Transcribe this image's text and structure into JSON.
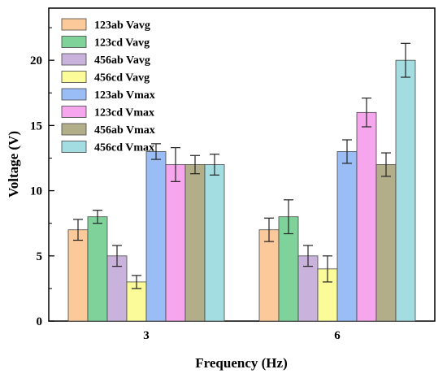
{
  "chart_data": {
    "type": "bar",
    "xlabel": "Frequency (Hz)",
    "ylabel": "Voltage (V)",
    "categories": [
      "3",
      "6"
    ],
    "ylim": [
      0,
      24
    ],
    "yticks": [
      0,
      5,
      10,
      15,
      20
    ],
    "grid": false,
    "legend_position": "top-left",
    "error_bars": true,
    "series": [
      {
        "name": "123ab Vavg",
        "color": "#fbc99a",
        "values": [
          7,
          7
        ],
        "errors": [
          0.8,
          0.9
        ]
      },
      {
        "name": "123cd Vavg",
        "color": "#7fd39a",
        "values": [
          8,
          8
        ],
        "errors": [
          0.5,
          1.3
        ]
      },
      {
        "name": "456ab Vavg",
        "color": "#c9b3dc",
        "values": [
          5,
          5
        ],
        "errors": [
          0.8,
          0.8
        ]
      },
      {
        "name": "456cd Vavg",
        "color": "#fbfb9a",
        "values": [
          3,
          4
        ],
        "errors": [
          0.5,
          1.0
        ]
      },
      {
        "name": "123ab Vmax",
        "color": "#9bbdf5",
        "values": [
          13,
          13
        ],
        "errors": [
          0.6,
          0.9
        ]
      },
      {
        "name": "123cd Vmax",
        "color": "#f6a6ec",
        "values": [
          12,
          16
        ],
        "errors": [
          1.3,
          1.1
        ]
      },
      {
        "name": "456ab Vmax",
        "color": "#b3ae8a",
        "values": [
          12,
          12
        ],
        "errors": [
          0.7,
          0.9
        ]
      },
      {
        "name": "456cd Vmax",
        "color": "#a3dde2",
        "values": [
          12,
          20
        ],
        "errors": [
          0.8,
          1.3
        ]
      }
    ]
  }
}
